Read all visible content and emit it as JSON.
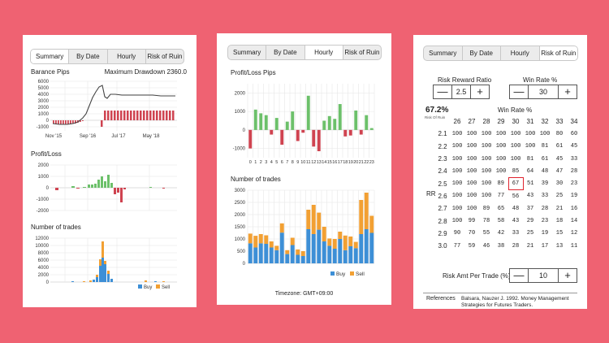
{
  "panel1": {
    "tabs": [
      "Summary",
      "By Date",
      "Hourly",
      "Risk of Ruin"
    ],
    "balance_title": "Barance Pips",
    "max_drawdown": "Maximum Drawdown 2360.0",
    "balance_yticks": [
      "6000",
      "5000",
      "4000",
      "3000",
      "2000",
      "1000",
      "0",
      "-1000"
    ],
    "balance_xticks": [
      "Nov '15",
      "Sep '16",
      "Jul '17",
      "May '18"
    ],
    "profit_title": "Profit/Loss",
    "profit_yticks": [
      "2000",
      "1000",
      "0",
      "-1000",
      "-2000"
    ],
    "trades_title": "Number of trades",
    "trades_yticks": [
      "12000",
      "10000",
      "8000",
      "6000",
      "4000",
      "2000",
      "0"
    ],
    "legend_buy": "Buy",
    "legend_sell": "Sell"
  },
  "panel2": {
    "tabs": [
      "Summary",
      "By Date",
      "Hourly",
      "Risk of Ruin"
    ],
    "pl_title": "Profit/Loss Pips",
    "pl_yticks": [
      "2000",
      "1000",
      "0",
      "-1000"
    ],
    "hours": [
      "0",
      "1",
      "2",
      "3",
      "4",
      "5",
      "6",
      "7",
      "8",
      "9",
      "10",
      "11",
      "12",
      "13",
      "14",
      "15",
      "16",
      "17",
      "18",
      "19",
      "20",
      "21",
      "22",
      "23"
    ],
    "trades_title": "Number of trades",
    "trades_yticks": [
      "3000",
      "2500",
      "2000",
      "1500",
      "1000",
      "500",
      "0"
    ],
    "legend_buy": "Buy",
    "legend_sell": "Sell",
    "timezone": "Timezone: GMT+09:00"
  },
  "panel3": {
    "tabs": [
      "Summary",
      "By Date",
      "Hourly",
      "Risk of Ruin"
    ],
    "rr_label": "Risk Reward Ratio",
    "rr_value": "2.5",
    "winrate_label": "Win Rate %",
    "winrate_value": "30",
    "ror_value": "67.2%",
    "ror_label": "Risk Of Ruin",
    "table_title": "Win Rate %",
    "rr_axis": "RR",
    "col_headers": [
      "26",
      "27",
      "28",
      "29",
      "30",
      "31",
      "32",
      "33",
      "34"
    ],
    "rows": [
      {
        "rr": "2.1",
        "cells": [
          "100",
          "100",
          "100",
          "100",
          "100",
          "100",
          "100",
          "80",
          "60"
        ]
      },
      {
        "rr": "2.2",
        "cells": [
          "100",
          "100",
          "100",
          "100",
          "100",
          "100",
          "81",
          "61",
          "45"
        ]
      },
      {
        "rr": "2.3",
        "cells": [
          "100",
          "100",
          "100",
          "100",
          "100",
          "81",
          "61",
          "45",
          "33"
        ]
      },
      {
        "rr": "2.4",
        "cells": [
          "100",
          "100",
          "100",
          "100",
          "85",
          "64",
          "48",
          "47",
          "28"
        ]
      },
      {
        "rr": "2.5",
        "cells": [
          "100",
          "100",
          "100",
          "89",
          "67",
          "51",
          "39",
          "30",
          "23"
        ]
      },
      {
        "rr": "2.6",
        "cells": [
          "100",
          "100",
          "100",
          "77",
          "56",
          "43",
          "33",
          "25",
          "19"
        ]
      },
      {
        "rr": "2.7",
        "cells": [
          "100",
          "100",
          "89",
          "65",
          "48",
          "37",
          "28",
          "21",
          "16"
        ]
      },
      {
        "rr": "2.8",
        "cells": [
          "100",
          "99",
          "78",
          "58",
          "43",
          "29",
          "23",
          "18",
          "14"
        ]
      },
      {
        "rr": "2.9",
        "cells": [
          "90",
          "70",
          "55",
          "42",
          "33",
          "25",
          "19",
          "15",
          "12"
        ]
      },
      {
        "rr": "3.0",
        "cells": [
          "77",
          "59",
          "46",
          "38",
          "28",
          "21",
          "17",
          "13",
          "11"
        ]
      }
    ],
    "risk_amt_label": "Risk Amt Per Trade (%)",
    "risk_amt_value": "10",
    "references_label": "References",
    "references_text_1": "Balsara, Nauzer J. 1992. Money Management",
    "references_text_2": "Strategies for Futures Traders.",
    "minus_symbol": "—",
    "plus_symbol": "+"
  },
  "colors": {
    "background": "#ef6272",
    "buy": "#3d8fd6",
    "sell": "#f2a033",
    "profit": "#6cc06a",
    "loss": "#cf4350",
    "highlight": "#e0242e"
  },
  "chart_data": [
    {
      "type": "bar",
      "title": "Profit/Loss Pips",
      "categories": [
        "0",
        "1",
        "2",
        "3",
        "4",
        "5",
        "6",
        "7",
        "8",
        "9",
        "10",
        "11",
        "12",
        "13",
        "14",
        "15",
        "16",
        "17",
        "18",
        "19",
        "20",
        "21",
        "22",
        "23"
      ],
      "values": [
        -1000,
        1100,
        900,
        800,
        -250,
        650,
        -800,
        450,
        1000,
        -600,
        -150,
        1850,
        -900,
        -1150,
        500,
        750,
        600,
        1400,
        -350,
        -300,
        1050,
        -250,
        800,
        100
      ],
      "ylim": [
        -1500,
        2500
      ]
    },
    {
      "type": "bar",
      "title": "Number of trades",
      "categories": [
        "0",
        "1",
        "2",
        "3",
        "4",
        "5",
        "6",
        "7",
        "8",
        "9",
        "10",
        "11",
        "12",
        "13",
        "14",
        "15",
        "16",
        "17",
        "18",
        "19",
        "20",
        "21",
        "22",
        "23"
      ],
      "series": [
        {
          "name": "Buy",
          "values": [
            820,
            650,
            820,
            800,
            650,
            540,
            1260,
            380,
            750,
            350,
            300,
            1400,
            1200,
            1380,
            900,
            720,
            600,
            1000,
            540,
            700,
            620,
            1200,
            1400,
            1250
          ]
        },
        {
          "name": "Sell",
          "values": [
            400,
            480,
            380,
            350,
            250,
            180,
            380,
            160,
            300,
            220,
            200,
            800,
            1200,
            700,
            600,
            300,
            400,
            300,
            600,
            400,
            260,
            1400,
            1500,
            700
          ]
        }
      ],
      "ylim": [
        0,
        3000
      ]
    }
  ]
}
